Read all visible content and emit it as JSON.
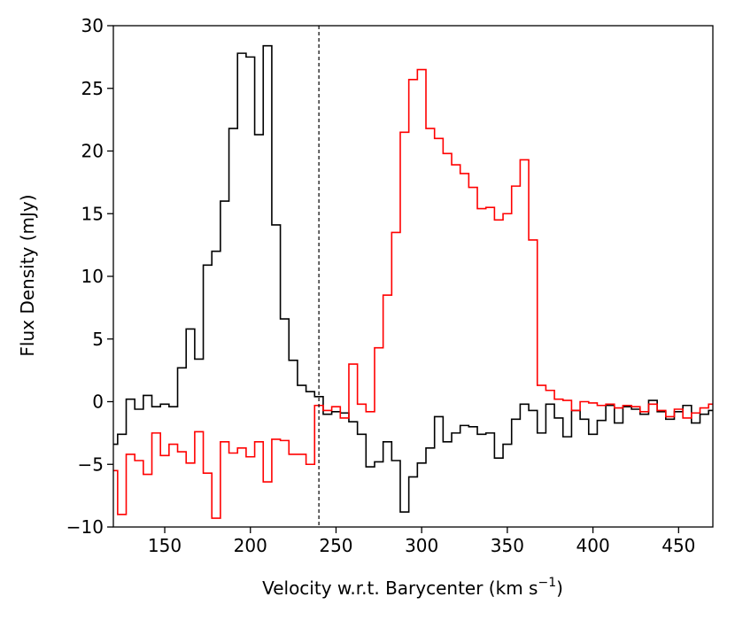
{
  "chart_data": {
    "type": "line",
    "step": true,
    "xlabel": "Velocity w.r.t. Barycenter (km s",
    "xlabel_superscript": "−1",
    "xlabel_suffix": ")",
    "ylabel": "Flux Density (mJy)",
    "xlim": [
      120,
      470
    ],
    "ylim": [
      -10,
      30
    ],
    "xticks": [
      150,
      200,
      250,
      300,
      350,
      400,
      450
    ],
    "yticks": [
      -10,
      -5,
      0,
      5,
      10,
      15,
      20,
      25,
      30
    ],
    "ytick_labels": [
      "−10",
      "−5",
      "0",
      "5",
      "10",
      "15",
      "20",
      "25",
      "30"
    ],
    "vline": {
      "x": 240,
      "style": "dashed",
      "color": "#000000"
    },
    "series": [
      {
        "color": "#000000",
        "x": [
          120,
          125,
          130,
          135,
          140,
          145,
          150,
          155,
          160,
          165,
          170,
          175,
          180,
          185,
          190,
          195,
          200,
          205,
          210,
          215,
          220,
          225,
          230,
          235,
          240,
          245,
          250,
          255,
          260,
          265,
          270,
          275,
          280,
          285,
          290,
          295,
          300,
          305,
          310,
          315,
          320,
          325,
          330,
          335,
          340,
          345,
          350,
          355,
          360,
          365,
          370,
          375,
          380,
          385,
          390,
          395,
          400,
          405,
          410,
          415,
          420,
          425,
          430,
          435,
          440,
          445,
          450,
          455,
          460,
          465,
          470
        ],
        "y": [
          -3.4,
          -2.6,
          0.2,
          -0.6,
          0.5,
          -0.4,
          -0.2,
          -0.4,
          2.7,
          5.8,
          3.4,
          10.9,
          12.0,
          16.0,
          21.8,
          27.8,
          27.5,
          21.3,
          28.4,
          14.1,
          6.6,
          3.3,
          1.3,
          0.8,
          0.4,
          -1.0,
          -0.8,
          -0.9,
          -1.6,
          -2.6,
          -5.2,
          -4.8,
          -3.2,
          -4.7,
          -8.8,
          -6.0,
          -4.9,
          -3.7,
          -1.2,
          -3.2,
          -2.5,
          -1.9,
          -2.0,
          -2.6,
          -2.5,
          -4.5,
          -3.4,
          -1.4,
          -0.2,
          -0.7,
          -2.5,
          -0.2,
          -1.3,
          -2.8,
          -0.7,
          -1.4,
          -2.6,
          -1.5,
          -0.3,
          -1.7,
          -0.4,
          -0.6,
          -1.0,
          0.1,
          -0.8,
          -1.4,
          -0.8,
          -0.3,
          -1.7,
          -1.0,
          -0.7
        ]
      },
      {
        "color": "#ff0000",
        "x": [
          120,
          125,
          130,
          135,
          140,
          145,
          150,
          155,
          160,
          165,
          170,
          175,
          180,
          185,
          190,
          195,
          200,
          205,
          210,
          215,
          220,
          225,
          230,
          235,
          240,
          245,
          250,
          255,
          260,
          265,
          270,
          275,
          280,
          285,
          290,
          295,
          300,
          305,
          310,
          315,
          320,
          325,
          330,
          335,
          340,
          345,
          350,
          355,
          360,
          365,
          370,
          375,
          380,
          385,
          390,
          395,
          400,
          405,
          410,
          415,
          420,
          425,
          430,
          435,
          440,
          445,
          450,
          455,
          460,
          465,
          470
        ],
        "y": [
          -5.5,
          -9.0,
          -4.2,
          -4.7,
          -5.8,
          -2.5,
          -4.3,
          -3.4,
          -4.0,
          -4.9,
          -2.4,
          -5.7,
          -9.3,
          -3.2,
          -4.1,
          -3.7,
          -4.4,
          -3.2,
          -6.4,
          -3.0,
          -3.1,
          -4.2,
          -4.2,
          -5.0,
          -0.3,
          -0.7,
          -0.4,
          -1.3,
          3.0,
          -0.2,
          -0.8,
          4.3,
          8.5,
          13.5,
          21.5,
          25.7,
          26.5,
          21.8,
          21.0,
          19.8,
          18.9,
          18.2,
          17.1,
          15.4,
          15.5,
          14.5,
          15.0,
          17.2,
          19.3,
          12.9,
          1.3,
          0.9,
          0.2,
          0.1,
          -0.7,
          0.0,
          -0.1,
          -0.3,
          -0.2,
          -0.5,
          -0.3,
          -0.4,
          -0.8,
          -0.2,
          -0.7,
          -1.2,
          -0.6,
          -1.3,
          -0.9,
          -0.5,
          -0.2
        ]
      }
    ]
  }
}
